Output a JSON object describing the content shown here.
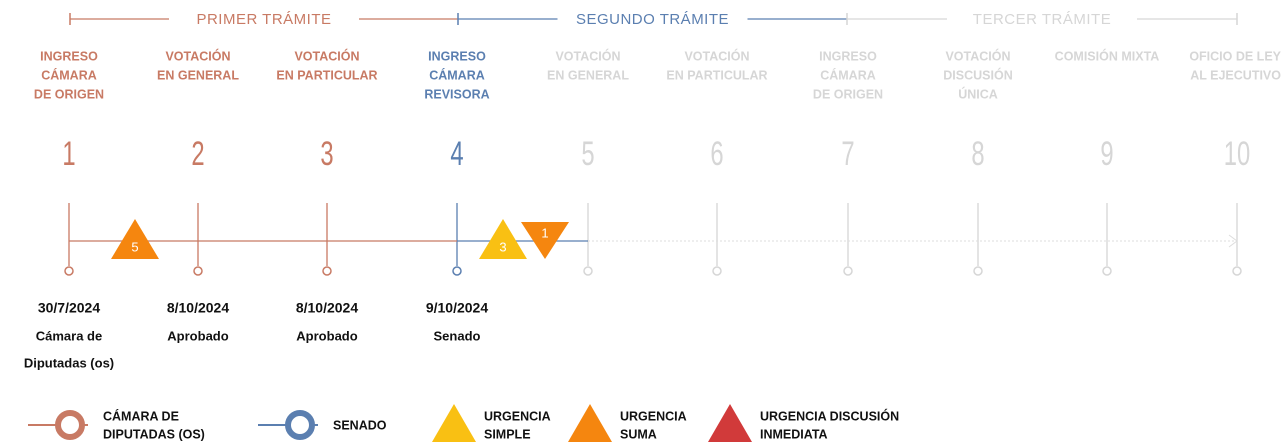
{
  "phases": [
    {
      "title": "PRIMER TRÁMITE",
      "color": "#c87a64"
    },
    {
      "title": "SEGUNDO TRÁMITE",
      "color": "#5b7fb0"
    },
    {
      "title": "TERCER TRÁMITE",
      "color": "#d6d6d6"
    }
  ],
  "steps": [
    {
      "number": 1,
      "label": [
        "INGRESO",
        "CÁMARA",
        "DE ORIGEN"
      ],
      "color": "#c87a64",
      "date": "30/7/2024",
      "status": [
        "Cámara de",
        "Diputadas (os)"
      ]
    },
    {
      "number": 2,
      "label": [
        "VOTACIÓN",
        "EN GENERAL"
      ],
      "color": "#c87a64",
      "date": "8/10/2024",
      "status": [
        "Aprobado"
      ]
    },
    {
      "number": 3,
      "label": [
        "VOTACIÓN",
        "EN PARTICULAR"
      ],
      "color": "#c87a64",
      "date": "8/10/2024",
      "status": [
        "Aprobado"
      ]
    },
    {
      "number": 4,
      "label": [
        "INGRESO",
        "CÁMARA",
        "REVISORA"
      ],
      "color": "#5b7fb0",
      "date": "9/10/2024",
      "status": [
        "Senado"
      ]
    },
    {
      "number": 5,
      "label": [
        "VOTACIÓN",
        "EN GENERAL"
      ],
      "color": "#d6d6d6"
    },
    {
      "number": 6,
      "label": [
        "VOTACIÓN",
        "EN PARTICULAR"
      ],
      "color": "#d6d6d6"
    },
    {
      "number": 7,
      "label": [
        "INGRESO",
        "CÁMARA",
        "DE ORIGEN"
      ],
      "color": "#d6d6d6"
    },
    {
      "number": 8,
      "label": [
        "VOTACIÓN",
        "DISCUSIÓN",
        "ÚNICA"
      ],
      "color": "#d6d6d6"
    },
    {
      "number": 9,
      "label": [
        "COMISIÓN MIXTA"
      ],
      "color": "#d6d6d6"
    },
    {
      "number": 10,
      "label": [
        "OFICIO DE LEY",
        "AL EJECUTIVO"
      ],
      "color": "#d6d6d6"
    }
  ],
  "urgencies": [
    {
      "count": 5,
      "color": "#f5860f",
      "direction": "up"
    },
    {
      "count": 3,
      "color": "#f9c013",
      "direction": "up"
    },
    {
      "count": 1,
      "color": "#f5860f",
      "direction": "down"
    }
  ],
  "legend": [
    {
      "label": [
        "CÁMARA DE",
        "DIPUTADAS (OS)"
      ],
      "color": "#c87a64",
      "shape": "circle"
    },
    {
      "label": [
        "SENADO"
      ],
      "color": "#5b7fb0",
      "shape": "circle"
    },
    {
      "label": [
        "URGENCIA",
        "SIMPLE"
      ],
      "color": "#f9c013",
      "shape": "triangle"
    },
    {
      "label": [
        "URGENCIA",
        "SUMA"
      ],
      "color": "#f5860f",
      "shape": "triangle"
    },
    {
      "label": [
        "URGENCIA DISCUSIÓN",
        "INMEDIATA"
      ],
      "color": "#d13a3a",
      "shape": "triangle"
    }
  ]
}
